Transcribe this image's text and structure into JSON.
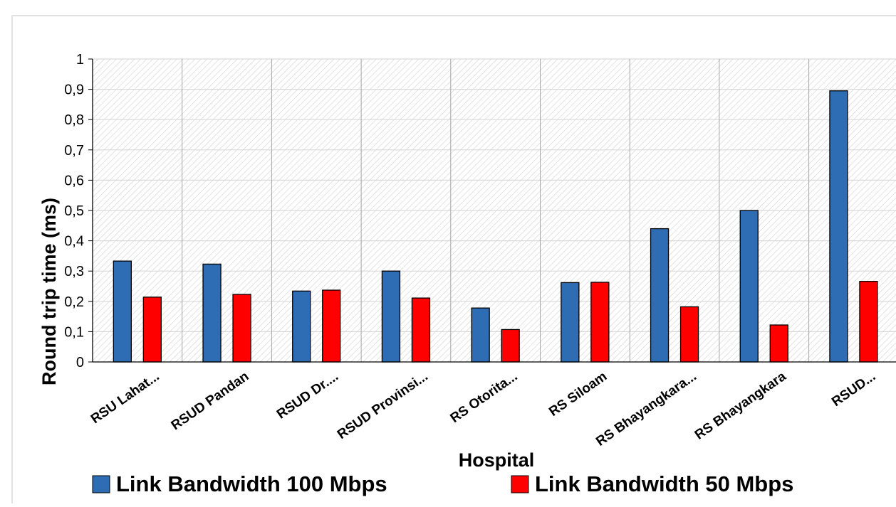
{
  "chart_data": {
    "type": "bar",
    "title": "",
    "xlabel": "Hospital",
    "ylabel": "Round trip time (ms)",
    "ylim": [
      0,
      1
    ],
    "y_ticks": [
      "0",
      "0,1",
      "0,2",
      "0,3",
      "0,4",
      "0,5",
      "0,6",
      "0,7",
      "0,8",
      "0,9",
      "1"
    ],
    "categories": [
      "RSU Lahat...",
      "RSUD Pandan",
      "RSUD Dr....",
      "RSUD Provinsi...",
      "RS Otorita...",
      "RS Siloam",
      "RS Bhayangkara...",
      "RS Bhayangkara",
      "RSUD..."
    ],
    "series": [
      {
        "name": "Link Bandwidth 100 Mbps",
        "color": "#2e6db4",
        "values": [
          0.333,
          0.323,
          0.234,
          0.3,
          0.178,
          0.262,
          0.44,
          0.5,
          0.895
        ]
      },
      {
        "name": "Link Bandwidth 50 Mbps",
        "color": "#ff0000",
        "values": [
          0.214,
          0.223,
          0.237,
          0.211,
          0.107,
          0.263,
          0.182,
          0.122,
          0.266
        ]
      }
    ],
    "grid": true,
    "legend": "bottom"
  }
}
